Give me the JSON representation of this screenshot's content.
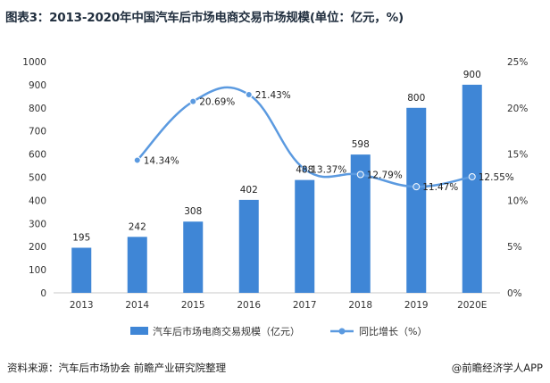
{
  "header": {
    "title": "图表3：2013-2020年中国汽车后市场电商交易市场规模(单位：亿元，%)"
  },
  "footer": {
    "source": "资料来源：汽车后市场协会 前瞻产业研究院整理",
    "credit": "@前瞻经济学人APP"
  },
  "chart_data": {
    "type": "bar",
    "title": "图表3：2013-2020年中国汽车后市场电商交易市场规模(单位：亿元，%)",
    "categories": [
      "2013",
      "2014",
      "2015",
      "2016",
      "2017",
      "2018",
      "2019",
      "2020E"
    ],
    "series": [
      {
        "name": "汽车后市场电商交易规模（亿元）",
        "type": "bar",
        "axis": "left",
        "values": [
          195,
          242,
          308,
          402,
          488,
          598,
          800,
          900
        ],
        "labels": [
          "195",
          "242",
          "308",
          "402",
          "488",
          "598",
          "800",
          "900"
        ]
      },
      {
        "name": "同比增长（%）",
        "type": "line",
        "axis": "right",
        "values": [
          null,
          14.34,
          20.69,
          21.43,
          13.37,
          12.79,
          11.47,
          12.55
        ],
        "labels": [
          "",
          "14.34%",
          "20.69%",
          "21.43%",
          "13.37%",
          "12.79%",
          "11.47%",
          "12.55%"
        ]
      }
    ],
    "y_left": {
      "range": [
        0,
        1000
      ],
      "ticks": [
        "0",
        "100",
        "200",
        "300",
        "400",
        "500",
        "600",
        "700",
        "800",
        "900",
        "1000"
      ]
    },
    "y_right": {
      "range": [
        0,
        25
      ],
      "ticks": [
        "0%",
        "5%",
        "10%",
        "15%",
        "20%",
        "25%"
      ]
    },
    "grid": false,
    "legend_position": "bottom",
    "colors": {
      "bar": "#3f86d6",
      "line": "#5b9ae0",
      "title": "#1f2d3d"
    }
  }
}
